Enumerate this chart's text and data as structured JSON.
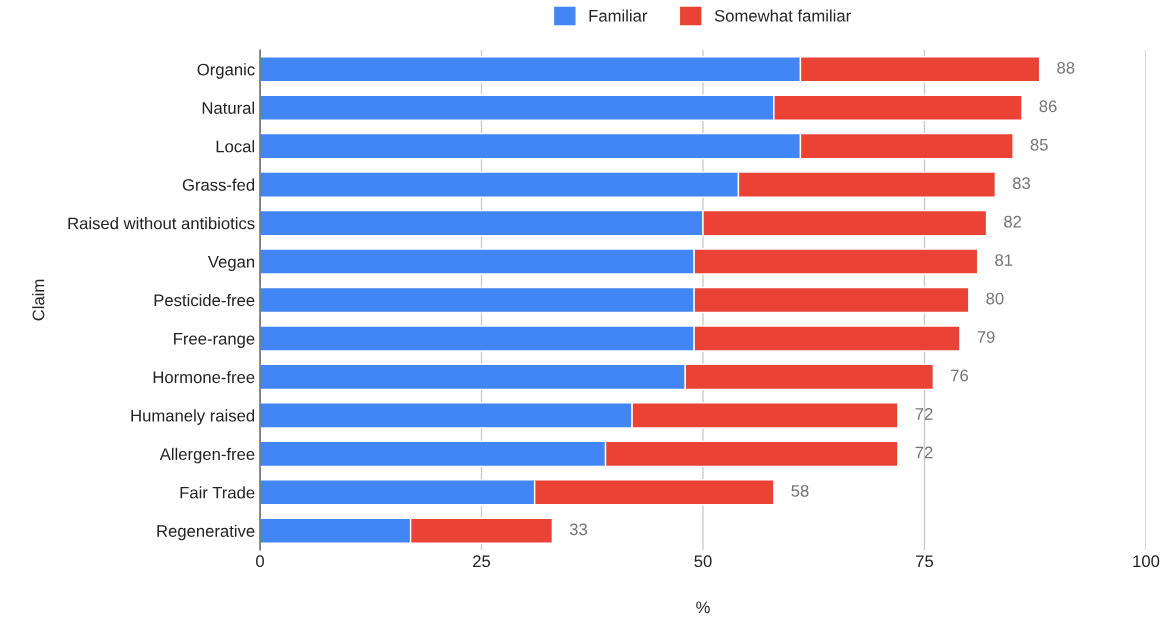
{
  "chart_data": {
    "type": "bar",
    "orientation": "horizontal",
    "stacked": true,
    "xlabel": "%",
    "ylabel": "Claim",
    "categories": [
      "Organic",
      "Natural",
      "Local",
      "Grass-fed",
      "Raised without antibiotics",
      "Vegan",
      "Pesticide-free",
      "Free-range",
      "Hormone-free",
      "Humanely raised",
      "Allergen-free",
      "Fair Trade",
      "Regenerative"
    ],
    "series": [
      {
        "name": "Familiar",
        "color": "#4285f4",
        "values": [
          61,
          58,
          61,
          54,
          50,
          49,
          49,
          49,
          48,
          42,
          39,
          31,
          17
        ]
      },
      {
        "name": "Somewhat familiar",
        "color": "#ea4335",
        "values": [
          27,
          28,
          24,
          29,
          32,
          32,
          31,
          30,
          28,
          30,
          33,
          27,
          16
        ]
      }
    ],
    "totals": [
      "88",
      "86",
      "85",
      "83",
      "82",
      "81",
      "80",
      "79",
      "76",
      "72",
      "72",
      "58",
      "33"
    ],
    "xlim": [
      0,
      100
    ],
    "xticks": [
      0,
      25,
      50,
      75,
      100
    ],
    "grid": "x",
    "legend": "top"
  }
}
